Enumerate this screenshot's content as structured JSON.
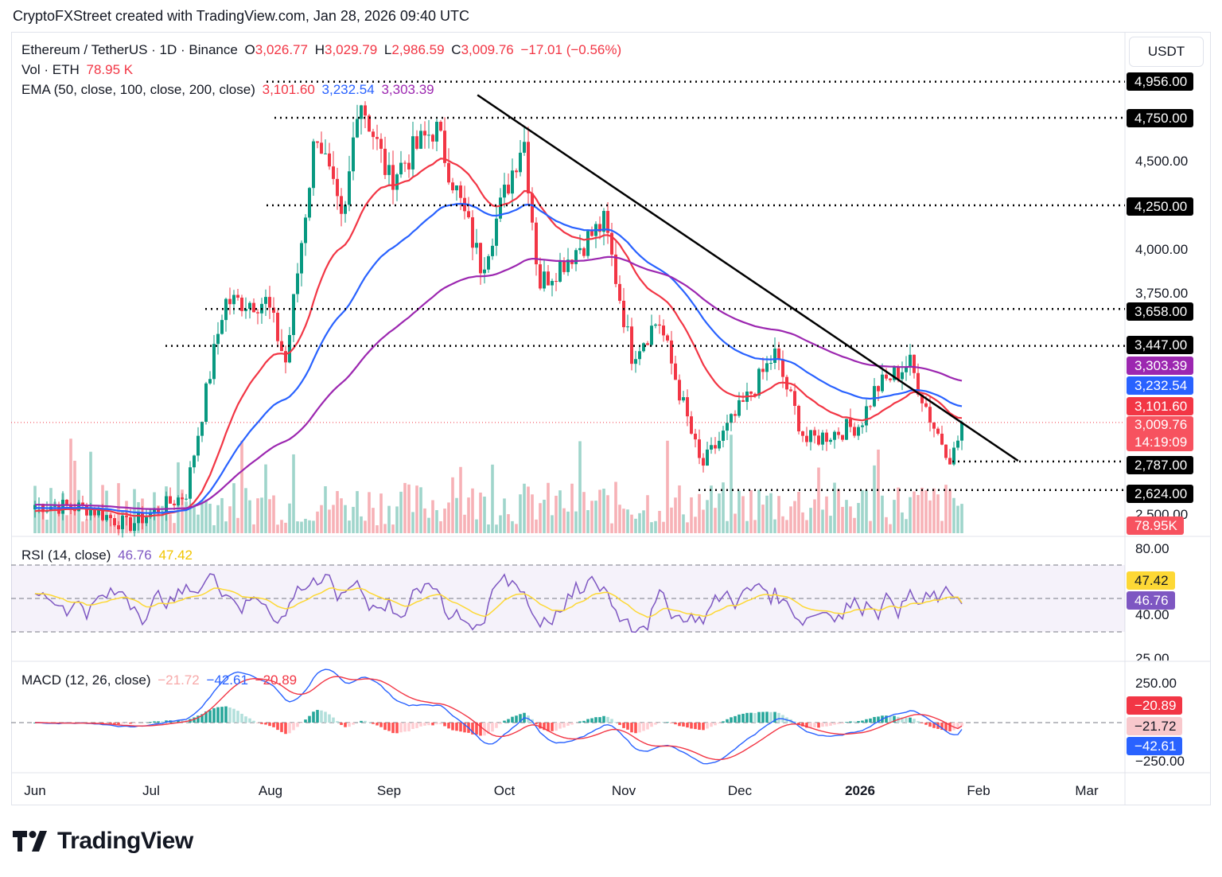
{
  "header": {
    "text": "CryptoFXStreet created with TradingView.com, Jan 28, 2026 09:40 UTC"
  },
  "legend": {
    "symbol": "Ethereum / TetherUS · 1D · Binance",
    "o_label": "O",
    "o_value": "3,026.77",
    "h_label": "H",
    "h_value": "3,029.79",
    "l_label": "L",
    "l_value": "2,986.59",
    "c_label": "C",
    "c_value": "3,009.76",
    "change": "−17.01 (−0.56%)",
    "vol_label": "Vol · ETH",
    "vol_value": "78.95 K",
    "ema_label": "EMA (50, close, 100, close, 200, close)",
    "ema50": "3,101.60",
    "ema100": "3,232.54",
    "ema200": "3,303.39"
  },
  "currency": "USDT",
  "price_axis": [
    "4,500.00",
    "4,000.00",
    "3,750.00",
    "2,500.00"
  ],
  "price_tags": {
    "h4956": "4,956.00",
    "h4750": "4,750.00",
    "h4250": "4,250.00",
    "h3658": "3,658.00",
    "h3447": "3,447.00",
    "ema200": "3,303.39",
    "ema100": "3,232.54",
    "ema50": "3,101.60",
    "last": "3,009.76",
    "countdown": "14:19:09",
    "h2787": "2,787.00",
    "h2624": "2,624.00",
    "volume": "78.95K"
  },
  "rsi": {
    "label": "RSI (14, close)",
    "value": "46.76",
    "ma": "47.42",
    "axis": [
      "80.00",
      "40.00",
      "25.00"
    ],
    "tag_ma": "47.42",
    "tag_value": "46.76"
  },
  "macd": {
    "label": "MACD (12, 26, close)",
    "hist": "−21.72",
    "macd": "−42.61",
    "signal": "−20.89",
    "axis": [
      "250.00",
      "−250.00"
    ],
    "tag_signal": "−20.89",
    "tag_hist": "−21.72",
    "tag_macd": "−42.61"
  },
  "time_axis": [
    "Jun",
    "Jul",
    "Aug",
    "Sep",
    "Oct",
    "Nov",
    "Dec",
    "2026",
    "Feb",
    "Mar"
  ],
  "brand": "TradingView",
  "colors": {
    "up": "#089981",
    "down": "#f23645",
    "ema50": "#f23645",
    "ema100": "#2962ff",
    "ema200": "#9c27b0",
    "rsi": "#7e57c2",
    "rsi_ma": "#fdd835"
  },
  "chart_data": {
    "type": "candlestick",
    "title": "Ethereum / TetherUS · 1D · Binance",
    "months": [
      "Jun",
      "Jul",
      "Aug",
      "Sep",
      "Oct",
      "Nov",
      "Dec",
      "2026",
      "Feb",
      "Mar"
    ],
    "ylim": [
      2300,
      5100
    ],
    "horizontal_levels": [
      4956,
      4750,
      4250,
      3658,
      3447,
      2787,
      2624
    ],
    "trendline": {
      "from": {
        "date": "Sep 24",
        "price": 4880
      },
      "to": {
        "date": "Feb 3",
        "price": 2700
      }
    },
    "close_path": [
      {
        "date": "Jun 1",
        "close": 2540
      },
      {
        "date": "Jun 15",
        "close": 2520
      },
      {
        "date": "Jun 25",
        "close": 2420
      },
      {
        "date": "Jul 10",
        "close": 2600
      },
      {
        "date": "Jul 20",
        "close": 3700
      },
      {
        "date": "Jul 31",
        "close": 3700
      },
      {
        "date": "Aug 5",
        "close": 3350
      },
      {
        "date": "Aug 13",
        "close": 4700
      },
      {
        "date": "Aug 20",
        "close": 4100
      },
      {
        "date": "Aug 24",
        "close": 4900
      },
      {
        "date": "Sep 1",
        "close": 4400
      },
      {
        "date": "Sep 13",
        "close": 4700
      },
      {
        "date": "Sep 25",
        "close": 3900
      },
      {
        "date": "Oct 6",
        "close": 4650
      },
      {
        "date": "Oct 10",
        "close": 3800
      },
      {
        "date": "Oct 27",
        "close": 4150
      },
      {
        "date": "Nov 3",
        "close": 3400
      },
      {
        "date": "Nov 10",
        "close": 3600
      },
      {
        "date": "Nov 21",
        "close": 2750
      },
      {
        "date": "Dec 3",
        "close": 3150
      },
      {
        "date": "Dec 10",
        "close": 3400
      },
      {
        "date": "Dec 18",
        "close": 2900
      },
      {
        "date": "Jan 1",
        "close": 3000
      },
      {
        "date": "Jan 5",
        "close": 3200
      },
      {
        "date": "Jan 14",
        "close": 3350
      },
      {
        "date": "Jan 20",
        "close": 3000
      },
      {
        "date": "Jan 25",
        "close": 2800
      },
      {
        "date": "Jan 28",
        "close": 3009.76
      }
    ],
    "ema": {
      "ema50": 3101.6,
      "ema100": 3232.54,
      "ema200": 3303.39
    },
    "rsi": {
      "value": 46.76,
      "ma": 47.42,
      "bands": [
        70,
        30
      ]
    },
    "macd": {
      "macd": -42.61,
      "signal": -20.89,
      "hist": -21.72
    }
  }
}
